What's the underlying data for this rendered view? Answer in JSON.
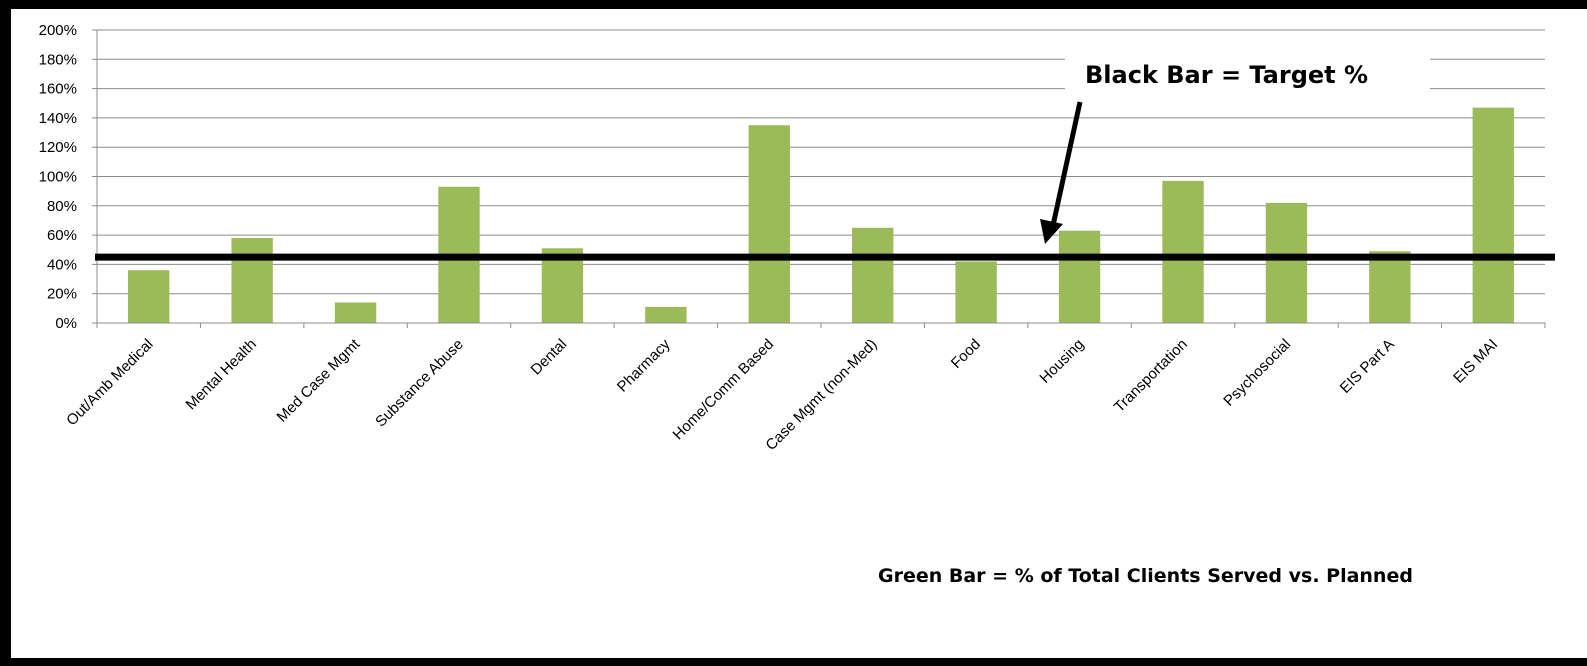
{
  "chart_data": {
    "type": "bar",
    "categories": [
      "Out/Amb Medical",
      "Mental Health",
      "Med Case Mgmt",
      "Substance Abuse",
      "Dental",
      "Pharmacy",
      "Home/Comm Based",
      "Case Mgmt (non-Med)",
      "Food",
      "Housing",
      "Transportation",
      "Psychosocial",
      "EIS Part A",
      "EIS MAI"
    ],
    "series": [
      {
        "values": [
          36,
          58,
          14,
          93,
          51,
          11,
          135,
          65,
          42,
          63,
          97,
          82,
          49,
          147
        ],
        "color": "#9bbb59"
      }
    ],
    "target": {
      "value": 45,
      "color": "#000000"
    },
    "ylim": [
      0,
      200
    ],
    "y_ticks": [
      "0%",
      "20%",
      "40%",
      "60%",
      "80%",
      "100%",
      "120%",
      "140%",
      "160%",
      "180%",
      "200%"
    ],
    "grid": true,
    "annotations": {
      "target_note": "Black Bar = Target %",
      "series_note": "Green Bar = % of Total Clients Served vs. Planned"
    }
  }
}
